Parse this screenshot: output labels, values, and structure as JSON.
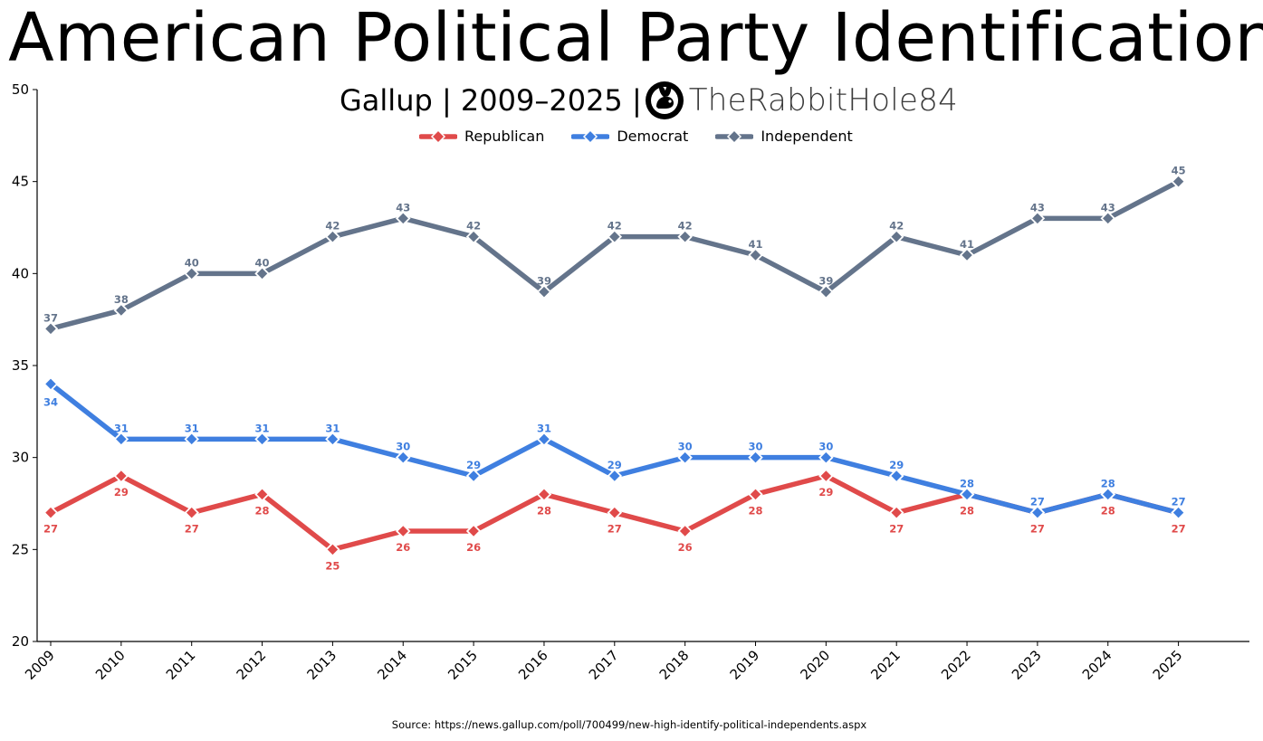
{
  "title": "American Political Party Identification",
  "subtitle": "Gallup | 2009–2025 |",
  "brand": {
    "name": "TheRabbitHole84",
    "logo": "rabbit-logo-icon"
  },
  "source": "Source: https://news.gallup.com/poll/700499/new-high-identify-political-independents.aspx",
  "chart_data": {
    "type": "line",
    "title": "American Political Party Identification",
    "subtitle": "Gallup | 2009–2025 |",
    "xlabel": "",
    "ylabel": "",
    "x": [
      "2009",
      "2010",
      "2011",
      "2012",
      "2013",
      "2014",
      "2015",
      "2016",
      "2017",
      "2018",
      "2019",
      "2020",
      "2021",
      "2022",
      "2023",
      "2024",
      "2025"
    ],
    "ylim": [
      20,
      50
    ],
    "yticks": [
      20,
      25,
      30,
      35,
      40,
      45,
      50
    ],
    "grid": false,
    "legend_position": "top-center",
    "series": [
      {
        "name": "Republican",
        "color": "#e04a4a",
        "values": [
          27,
          29,
          27,
          28,
          25,
          26,
          26,
          28,
          27,
          26,
          28,
          29,
          27,
          28,
          27,
          28,
          27
        ]
      },
      {
        "name": "Democrat",
        "color": "#3f7fe0",
        "values": [
          34,
          31,
          31,
          31,
          31,
          30,
          29,
          31,
          29,
          30,
          30,
          30,
          29,
          28,
          27,
          28,
          27
        ]
      },
      {
        "name": "Independent",
        "color": "#64748b",
        "values": [
          37,
          38,
          40,
          40,
          42,
          43,
          42,
          39,
          42,
          42,
          41,
          39,
          42,
          41,
          43,
          43,
          45
        ]
      }
    ]
  }
}
